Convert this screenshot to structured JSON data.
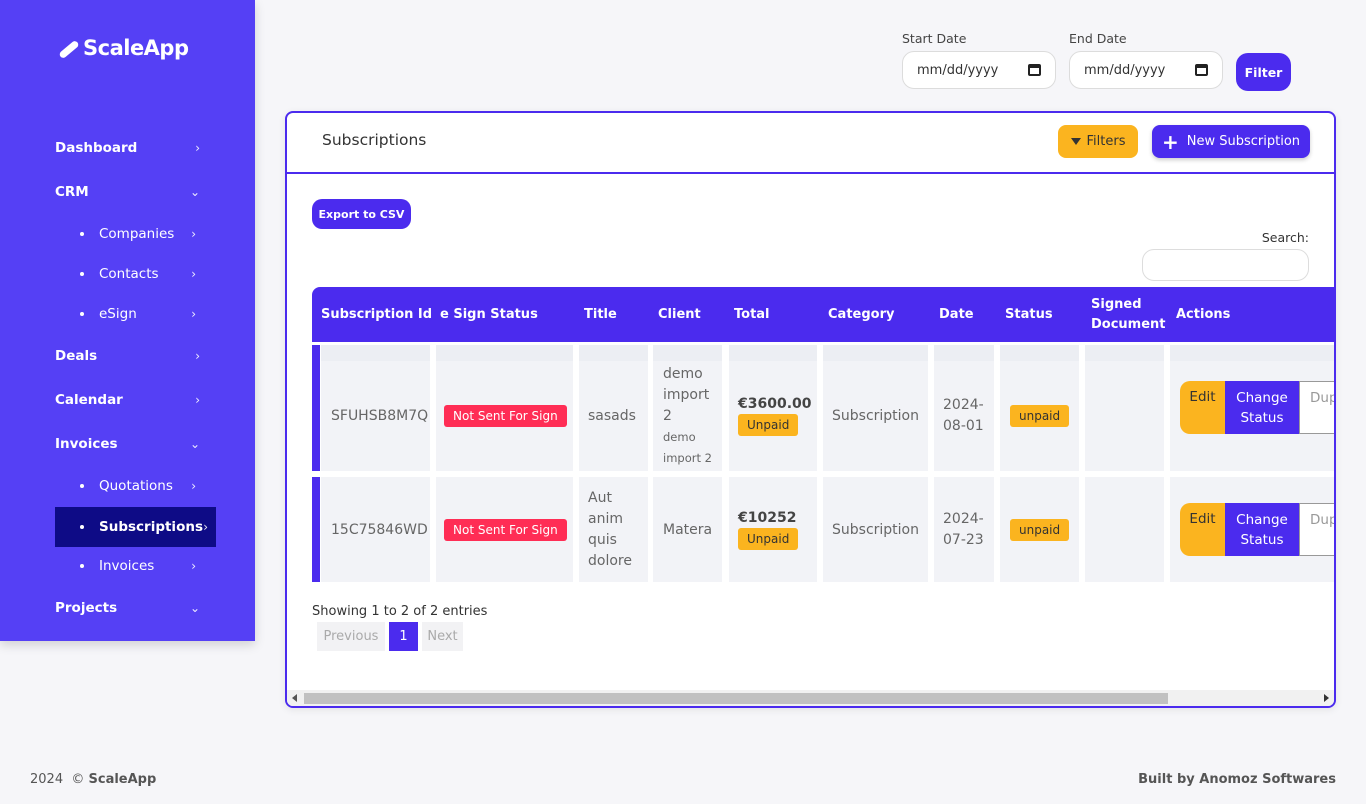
{
  "brand": {
    "name": "ScaleApp"
  },
  "sidebar": {
    "items": [
      {
        "label": "Dashboard",
        "chev": "›"
      },
      {
        "label": "CRM",
        "chev": "⌄"
      },
      {
        "label": "Companies",
        "chev": "›"
      },
      {
        "label": "Contacts",
        "chev": "›"
      },
      {
        "label": "eSign",
        "chev": "›"
      },
      {
        "label": "Deals",
        "chev": "›"
      },
      {
        "label": "Calendar",
        "chev": "›"
      },
      {
        "label": "Invoices",
        "chev": "⌄"
      },
      {
        "label": "Quotations",
        "chev": "›"
      },
      {
        "label": "Subscriptions",
        "chev": "›"
      },
      {
        "label": "Invoices",
        "chev": "›"
      },
      {
        "label": "Projects",
        "chev": "⌄"
      }
    ]
  },
  "filters": {
    "start_label": "Start Date",
    "start_value": "mm/dd/yyyy",
    "end_label": "End Date",
    "end_value": "mm/dd/yyyy",
    "filter_button": "Filter"
  },
  "card": {
    "title": "Subscriptions",
    "filters_button": "Filters",
    "new_button": "New Subscription",
    "export_button": "Export to CSV",
    "search_label": "Search:"
  },
  "table": {
    "columns": [
      "Subscription Id",
      "e Sign Status",
      "Title",
      "Client",
      "Total",
      "Category",
      "Date",
      "Status",
      "Signed Document",
      "Actions"
    ],
    "rows": [
      {
        "id": "SFUHSB8M7Q",
        "esign": "Not Sent For Sign",
        "title": "sasads",
        "client": "demo import 2",
        "client_sub": "demo import 2",
        "total": "€3600.00",
        "total_status": "Unpaid",
        "category": "Subscription",
        "date": "2024-08-01",
        "status": "unpaid",
        "signed": "",
        "actions": {
          "edit": "Edit",
          "change": "Change Status",
          "dup": "Dup"
        }
      },
      {
        "id": "15C75846WD",
        "esign": "Not Sent For Sign",
        "title": "Aut anim quis dolore",
        "client": "Matera",
        "total": "€10252",
        "total_status": "Unpaid",
        "category": "Subscription",
        "date": "2024-07-23",
        "status": "unpaid",
        "signed": "",
        "actions": {
          "edit": "Edit",
          "change": "Change Status",
          "dup": "Dup"
        }
      }
    ]
  },
  "pagination": {
    "info": "Showing 1 to 2 of 2 entries",
    "previous": "Previous",
    "current": "1",
    "next": "Next"
  },
  "footer": {
    "year": "2024",
    "copy": "©",
    "brand": "ScaleApp",
    "built_by": "Built by Anomoz Softwares"
  }
}
